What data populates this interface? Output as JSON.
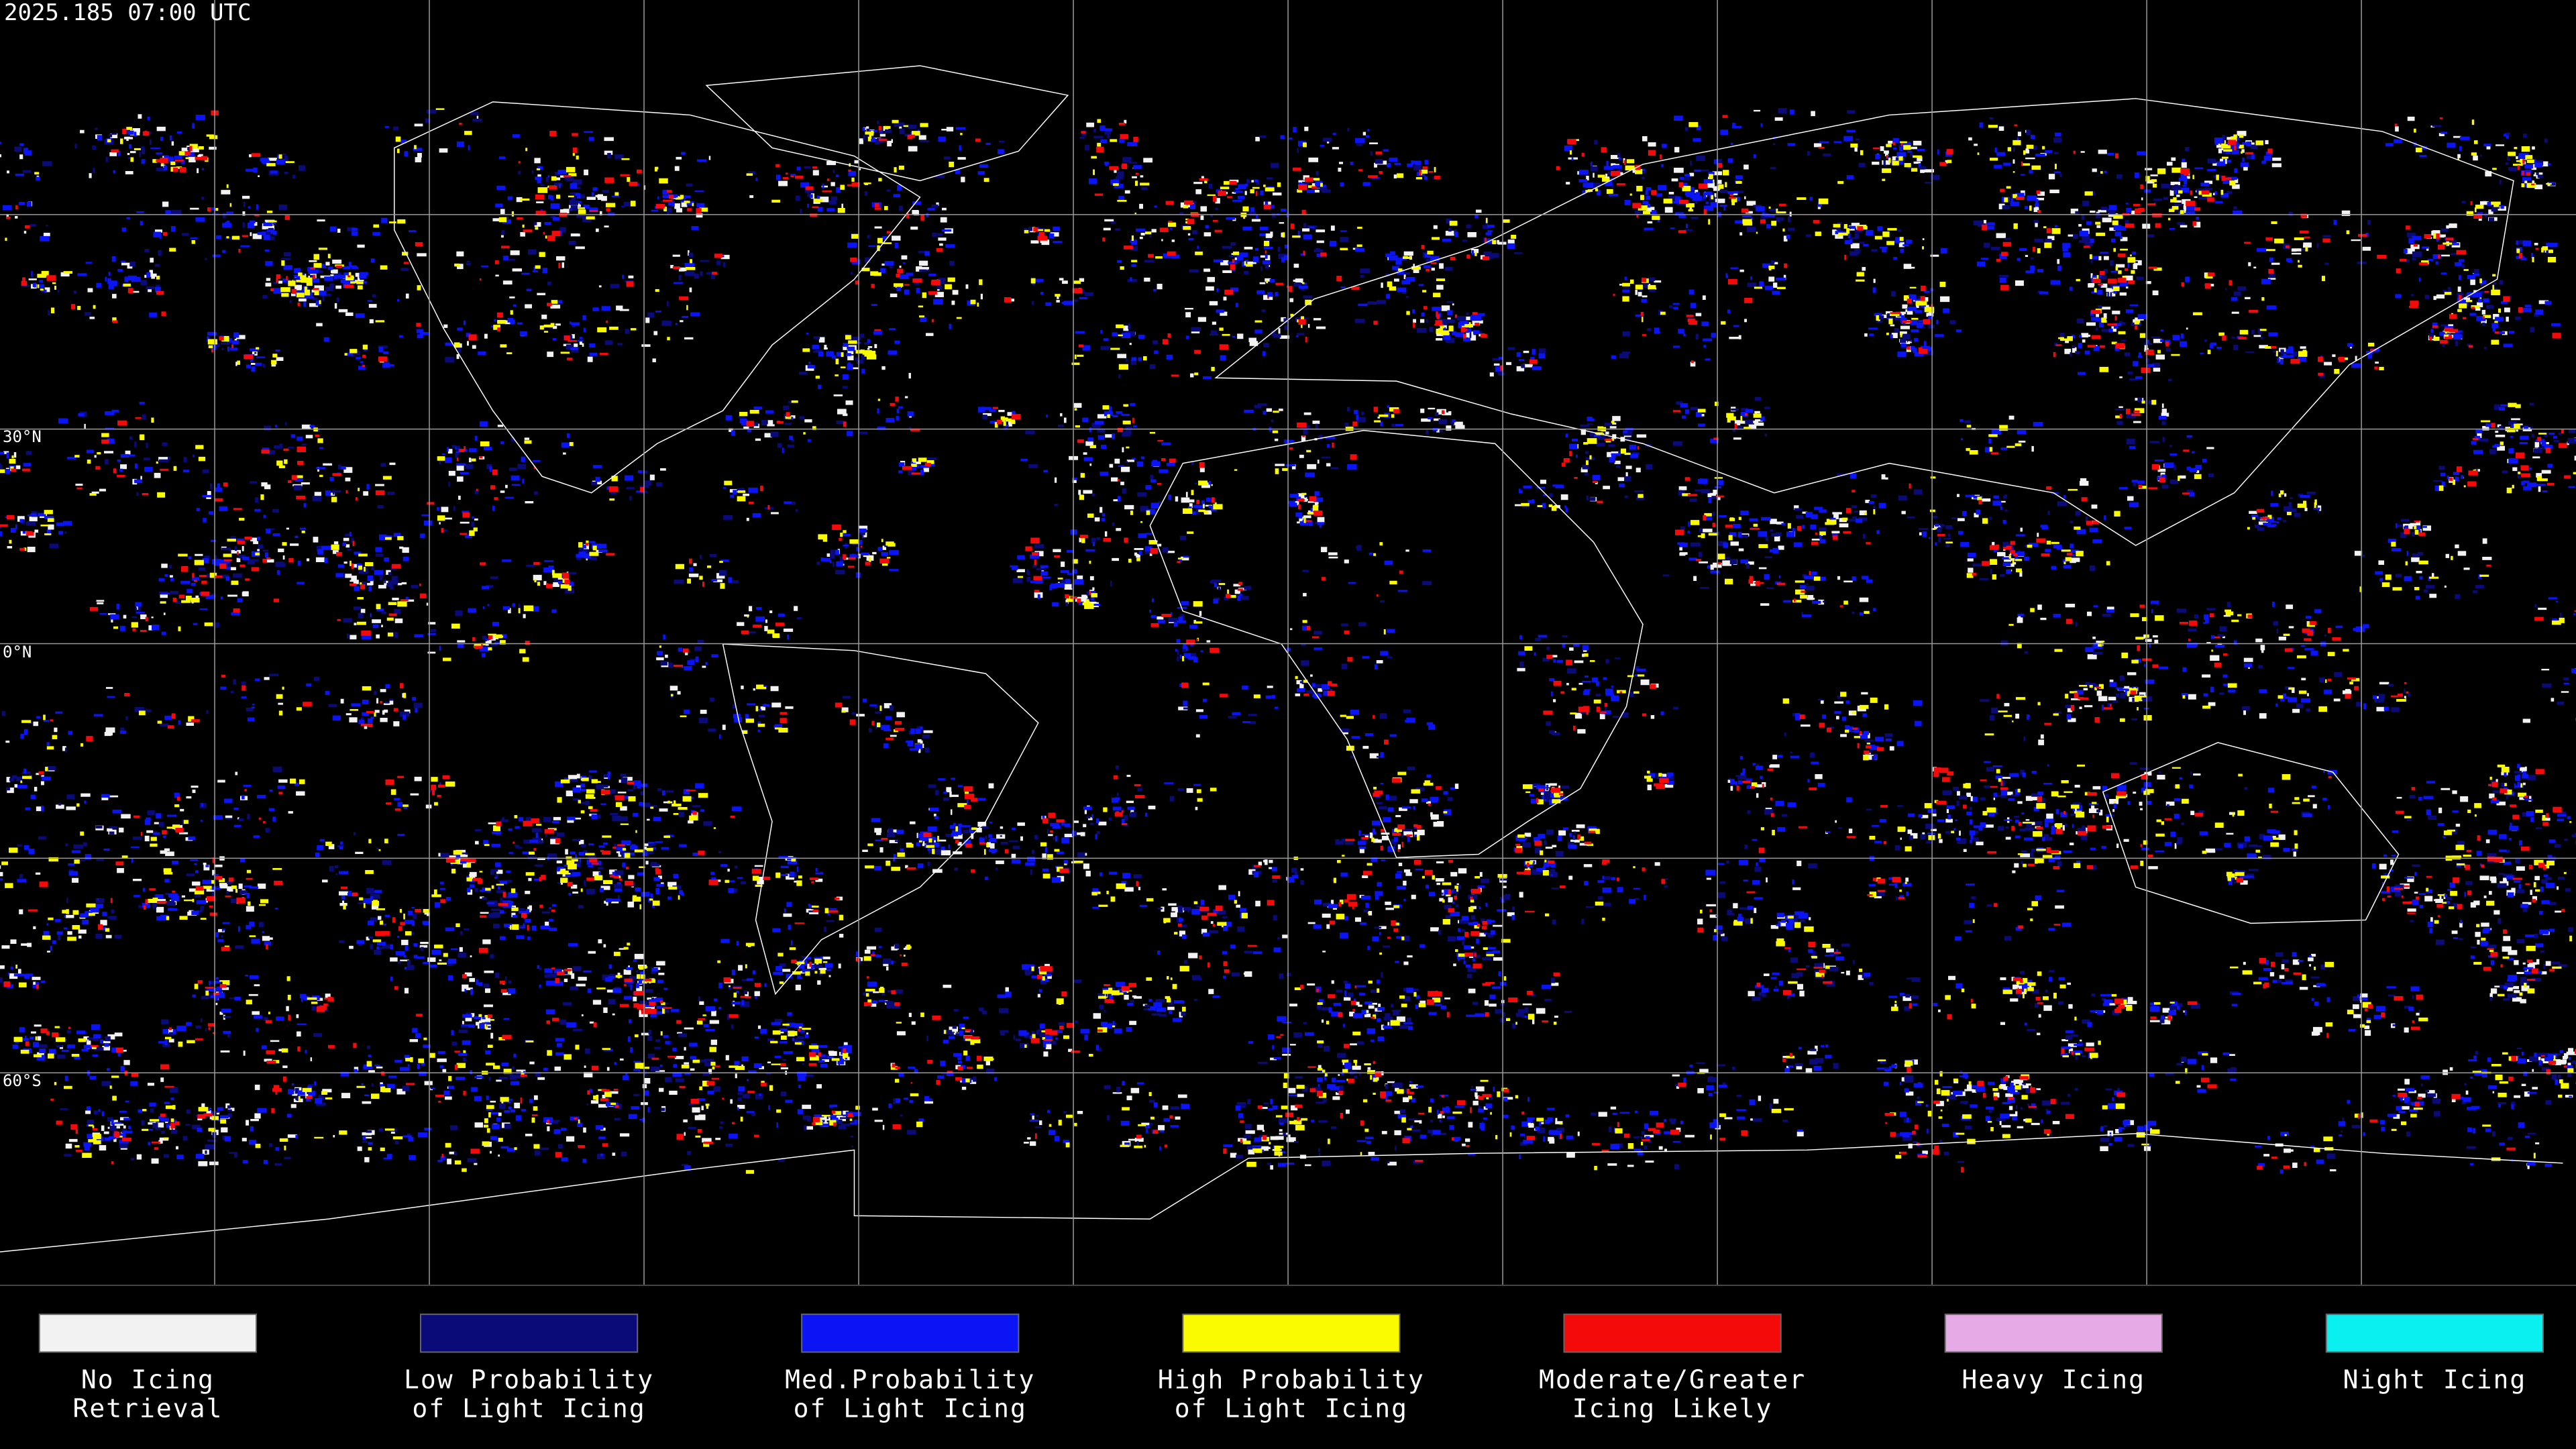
{
  "header": {
    "timestamp": "2025.185 07:00 UTC"
  },
  "map": {
    "lat_labels": [
      "30°N",
      "0°N",
      "60°S"
    ]
  },
  "legend": {
    "items": [
      {
        "color": "#f2f2f2",
        "lines": [
          "No Icing",
          "Retrieval"
        ]
      },
      {
        "color": "#0a0a78",
        "lines": [
          "Low Probability",
          "of Light Icing"
        ]
      },
      {
        "color": "#0a14f5",
        "lines": [
          "Med.Probability",
          "of Light Icing"
        ]
      },
      {
        "color": "#fafa00",
        "lines": [
          "High Probability",
          "of Light Icing"
        ]
      },
      {
        "color": "#f50a0a",
        "lines": [
          "Moderate/Greater",
          "Icing Likely"
        ]
      },
      {
        "color": "#e6aae6",
        "lines": [
          "Heavy Icing"
        ]
      },
      {
        "color": "#0af0f0",
        "lines": [
          "Night Icing"
        ]
      }
    ]
  }
}
